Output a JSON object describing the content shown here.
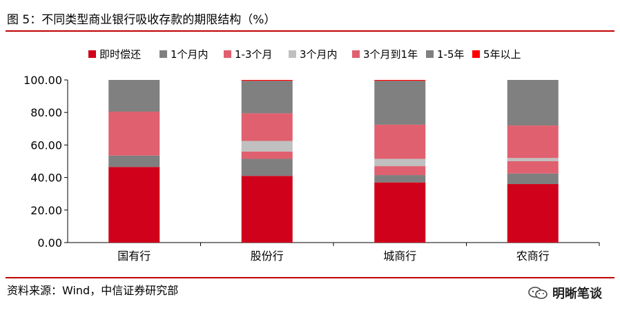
{
  "figure": {
    "title": "图 5：不同类型商业银行吸收存款的期限结构（%）",
    "source": "资料来源：Wind，中信证券研究部",
    "watermark": "明晰笔谈"
  },
  "colors": {
    "即时偿还": "#d0021b",
    "1个月内": "#7f7f7f",
    "1-3个月": "#e0606f",
    "3个月内": "#c0c0c0",
    "3个月到1年": "#e0606f",
    "1-5年": "#808080",
    "5年以上": "#ff0000",
    "rule": "#c00000"
  },
  "chart_data": {
    "type": "bar",
    "stacked": true,
    "categories": [
      "国有行",
      "股份行",
      "城商行",
      "农商行"
    ],
    "series": [
      {
        "name": "即时偿还",
        "values": [
          46.5,
          41.0,
          37.0,
          36.0
        ]
      },
      {
        "name": "1个月内",
        "values": [
          7.0,
          10.5,
          4.5,
          6.5
        ]
      },
      {
        "name": "1-3个月",
        "values": [
          0.0,
          4.5,
          5.5,
          7.5
        ]
      },
      {
        "name": "3个月内",
        "values": [
          0.0,
          6.5,
          4.5,
          2.0
        ]
      },
      {
        "name": "3个月到1年",
        "values": [
          27.0,
          17.0,
          21.0,
          20.0
        ]
      },
      {
        "name": "1-5年",
        "values": [
          19.5,
          20.0,
          27.0,
          28.0
        ]
      },
      {
        "name": "5年以上",
        "values": [
          0.0,
          0.5,
          0.5,
          0.0
        ]
      }
    ],
    "yticks": [
      "0.00",
      "20.00",
      "40.00",
      "60.00",
      "80.00",
      "100.00"
    ],
    "ylim": [
      0,
      100
    ],
    "legend_position": "top",
    "grid": false
  }
}
